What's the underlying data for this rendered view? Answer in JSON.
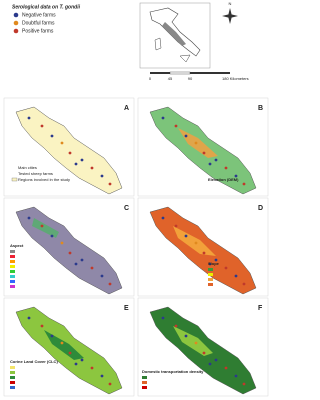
{
  "legend": {
    "title": "Serological data on T. gondii",
    "items": [
      "Negative farms",
      "Doubtful farms",
      "Positive farms"
    ]
  },
  "compass": "N",
  "scale": [
    "0",
    "45",
    "90",
    "180 Kilometers"
  ],
  "panels": [
    {
      "letter": "A",
      "legend": [
        "Main cities",
        "Tested sheep farms",
        "Regions involved in the study"
      ]
    },
    {
      "letter": "B",
      "legend": [
        "Elevation (DEM)"
      ]
    },
    {
      "letter": "C",
      "legend": [
        "Aspect"
      ]
    },
    {
      "letter": "D",
      "legend": [
        "Slope"
      ]
    },
    {
      "letter": "E",
      "legend": [
        "Corine Land Cover (CLC)"
      ]
    },
    {
      "letter": "F",
      "legend": [
        "Domestic transportation density"
      ]
    }
  ]
}
